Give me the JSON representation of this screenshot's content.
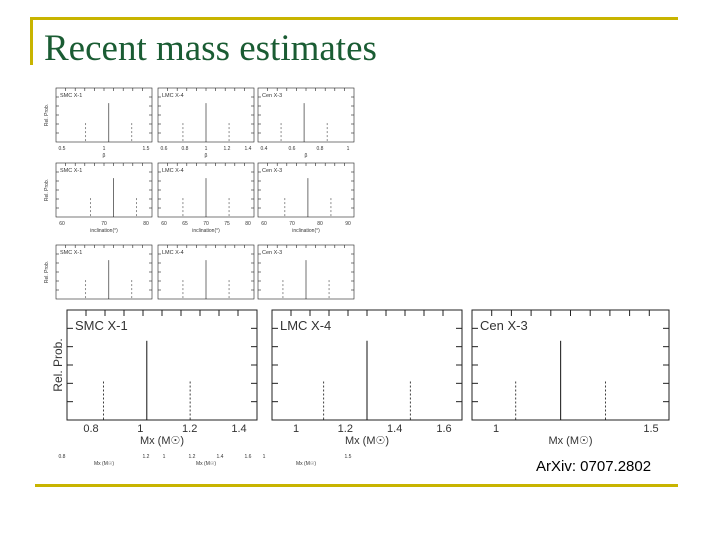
{
  "slide": {
    "title": "Recent mass estimates",
    "citation": "ArXiv: 0707.2802",
    "colors": {
      "frame": "#c8b400",
      "title": "#1a5c33"
    }
  },
  "figure_top": {
    "y_label": "Rel. Prob.",
    "panel_labels": [
      [
        "SMC X-1",
        "LMC X-4",
        "Cen X-3"
      ],
      [
        "SMC X-1",
        "LMC X-4",
        "Cen X-3"
      ],
      [
        "SMC X-1",
        "LMC X-4",
        "Cen X-3"
      ]
    ],
    "row1_xticks": [
      [
        "0.5",
        "1",
        "1.5"
      ],
      [
        "0.6",
        "0.8",
        "1",
        "1.2",
        "1.4"
      ],
      [
        "0.4",
        "0.6",
        "0.8",
        "1"
      ]
    ],
    "row1_xlabel": "β",
    "row2_xticks": [
      [
        "60",
        "70",
        "80"
      ],
      [
        "60",
        "65",
        "70",
        "75",
        "80"
      ],
      [
        "60",
        "70",
        "80",
        "90"
      ]
    ],
    "row2_xlabel": "inclination(°)",
    "row3_xticks": [
      [
        "0.8",
        "1.2"
      ],
      [
        "1",
        "1.2",
        "1.4",
        "1.6"
      ],
      [
        "1",
        "1.5"
      ]
    ],
    "row3_xlabel": "Mx (M☉)"
  },
  "figure_bottom": {
    "y_label": "Rel. Prob.",
    "panels": [
      {
        "label": "SMC X-1",
        "xticks": [
          "0.8",
          "1",
          "1.2",
          "1.4"
        ],
        "xlabel": "Mx (M☉)"
      },
      {
        "label": "LMC X-4",
        "xticks": [
          "1",
          "1.2",
          "1.4",
          "1.6"
        ],
        "xlabel": "Mx (M☉)"
      },
      {
        "label": "Cen X-3",
        "xticks": [
          "1",
          "1.5"
        ],
        "xlabel": "Mx (M☉)"
      }
    ]
  }
}
